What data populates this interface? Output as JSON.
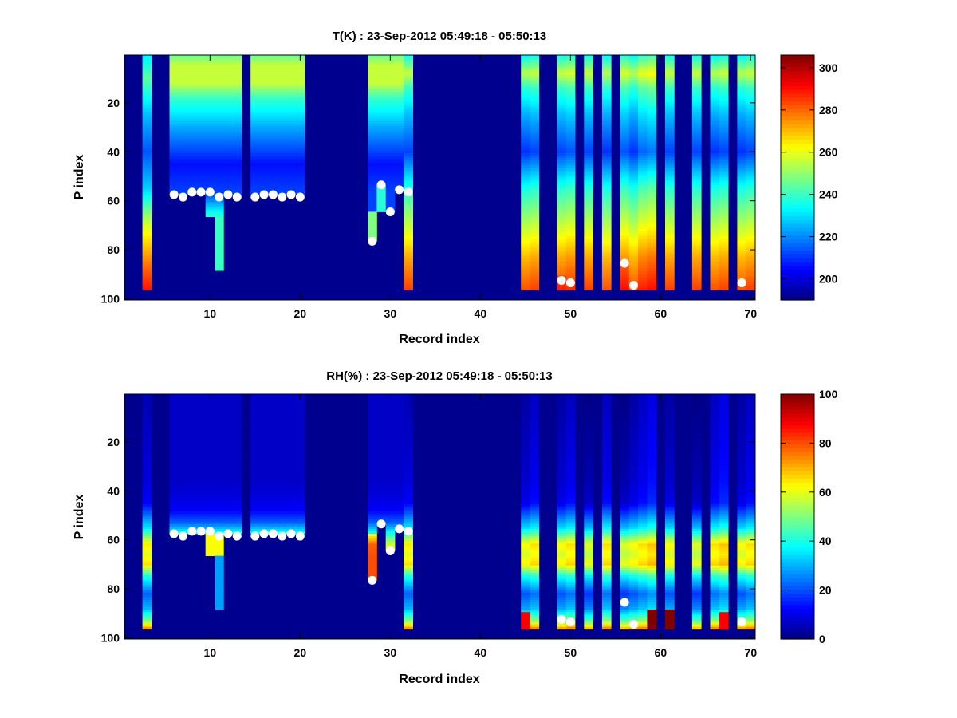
{
  "figure": {
    "background": "#ffffff"
  },
  "chart_data": [
    {
      "type": "heatmap",
      "id": "temperature",
      "title": "T(K) : 23-Sep-2012 05:49:18 - 05:50:13",
      "xlabel": "Record index",
      "ylabel": "P index",
      "xlim": [
        0.5,
        70.5
      ],
      "ylim": [
        0.5,
        100.5
      ],
      "y_reversed": true,
      "xticks": [
        10,
        20,
        30,
        40,
        50,
        60,
        70
      ],
      "yticks": [
        20,
        40,
        60,
        80,
        100
      ],
      "colormap": "jet",
      "clim": [
        190,
        306
      ],
      "colorbar_ticks": [
        200,
        220,
        240,
        260,
        280,
        300
      ],
      "no_data_color": "#00008f",
      "markers": {
        "color": "#ffffff",
        "points": [
          [
            6,
            57.5
          ],
          [
            7,
            58.5
          ],
          [
            8,
            56.5
          ],
          [
            9,
            56.5
          ],
          [
            10,
            56.5
          ],
          [
            11,
            58.5
          ],
          [
            12,
            57.5
          ],
          [
            13,
            58.5
          ],
          [
            15,
            58.5
          ],
          [
            16,
            57.5
          ],
          [
            17,
            57.5
          ],
          [
            18,
            58.5
          ],
          [
            19,
            57.5
          ],
          [
            20,
            58.5
          ],
          [
            28,
            76.5
          ],
          [
            29,
            53.5
          ],
          [
            30,
            64.5
          ],
          [
            31,
            55.5
          ],
          [
            32,
            56.5
          ],
          [
            49,
            92.5
          ],
          [
            50,
            93.5
          ],
          [
            56,
            85.5
          ],
          [
            57,
            94.5
          ],
          [
            69,
            93.5
          ]
        ]
      }
    },
    {
      "type": "heatmap",
      "id": "relative-humidity",
      "title": "RH(%) : 23-Sep-2012 05:49:18 - 05:50:13",
      "xlabel": "Record index",
      "ylabel": "P index",
      "xlim": [
        0.5,
        70.5
      ],
      "ylim": [
        0.5,
        100.5
      ],
      "y_reversed": true,
      "xticks": [
        10,
        20,
        30,
        40,
        50,
        60,
        70
      ],
      "yticks": [
        20,
        40,
        60,
        80,
        100
      ],
      "colormap": "jet",
      "clim": [
        0,
        100
      ],
      "colorbar_ticks": [
        0,
        20,
        40,
        60,
        80,
        100
      ],
      "no_data_color": "#00008f",
      "markers": {
        "color": "#ffffff",
        "points": [
          [
            6,
            57.5
          ],
          [
            7,
            58.5
          ],
          [
            8,
            56.5
          ],
          [
            9,
            56.5
          ],
          [
            10,
            56.5
          ],
          [
            11,
            58.5
          ],
          [
            12,
            57.5
          ],
          [
            13,
            58.5
          ],
          [
            15,
            58.5
          ],
          [
            16,
            57.5
          ],
          [
            17,
            57.5
          ],
          [
            18,
            58.5
          ],
          [
            19,
            57.5
          ],
          [
            20,
            58.5
          ],
          [
            28,
            76.5
          ],
          [
            29,
            53.5
          ],
          [
            30,
            64.5
          ],
          [
            31,
            55.5
          ],
          [
            32,
            56.5
          ],
          [
            49,
            92.5
          ],
          [
            50,
            93.5
          ],
          [
            56,
            85.5
          ],
          [
            57,
            94.5
          ],
          [
            69,
            93.5
          ]
        ]
      }
    }
  ],
  "records": {
    "standard": [
      6,
      7,
      8,
      9,
      12,
      13,
      15,
      16,
      17,
      18,
      19,
      20
    ],
    "short": [
      10,
      11
    ],
    "special": [
      3,
      28,
      29,
      30,
      31,
      32
    ],
    "lower_ends": [
      [
        3,
        96
      ],
      [
        45,
        96
      ],
      [
        46,
        96
      ],
      [
        49,
        96
      ],
      [
        50,
        96
      ],
      [
        52,
        96
      ],
      [
        54,
        96
      ],
      [
        56,
        96
      ],
      [
        57,
        96
      ],
      [
        58,
        96
      ],
      [
        59,
        96
      ],
      [
        61,
        96
      ],
      [
        64,
        96
      ],
      [
        66,
        96
      ],
      [
        67,
        96
      ],
      [
        69,
        96
      ],
      [
        70,
        96
      ]
    ]
  }
}
